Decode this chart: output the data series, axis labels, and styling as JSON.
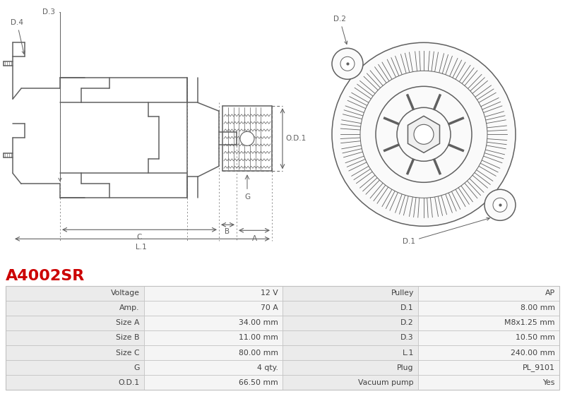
{
  "title": "A4002SR",
  "title_color": "#cc0000",
  "bg_color": "#ffffff",
  "table_rows": [
    [
      "Voltage",
      "12 V",
      "Pulley",
      "AP"
    ],
    [
      "Amp.",
      "70 A",
      "D.1",
      "8.00 mm"
    ],
    [
      "Size A",
      "34.00 mm",
      "D.2",
      "M8x1.25 mm"
    ],
    [
      "Size B",
      "11.00 mm",
      "D.3",
      "10.50 mm"
    ],
    [
      "Size C",
      "80.00 mm",
      "L.1",
      "240.00 mm"
    ],
    [
      "G",
      "4 qty.",
      "Plug",
      "PL_9101"
    ],
    [
      "O.D.1",
      "66.50 mm",
      "Vacuum pump",
      "Yes"
    ]
  ],
  "lc": "#606060",
  "ac": "#606060",
  "bg": "#ffffff",
  "row_bg1": "#f0f0f0",
  "row_bg2": "#e8e8e8",
  "val_bg": "#f8f8f8",
  "border": "#c0c0c0",
  "text_color": "#404040",
  "fs_table": 7.8,
  "fs_ann": 7.5
}
